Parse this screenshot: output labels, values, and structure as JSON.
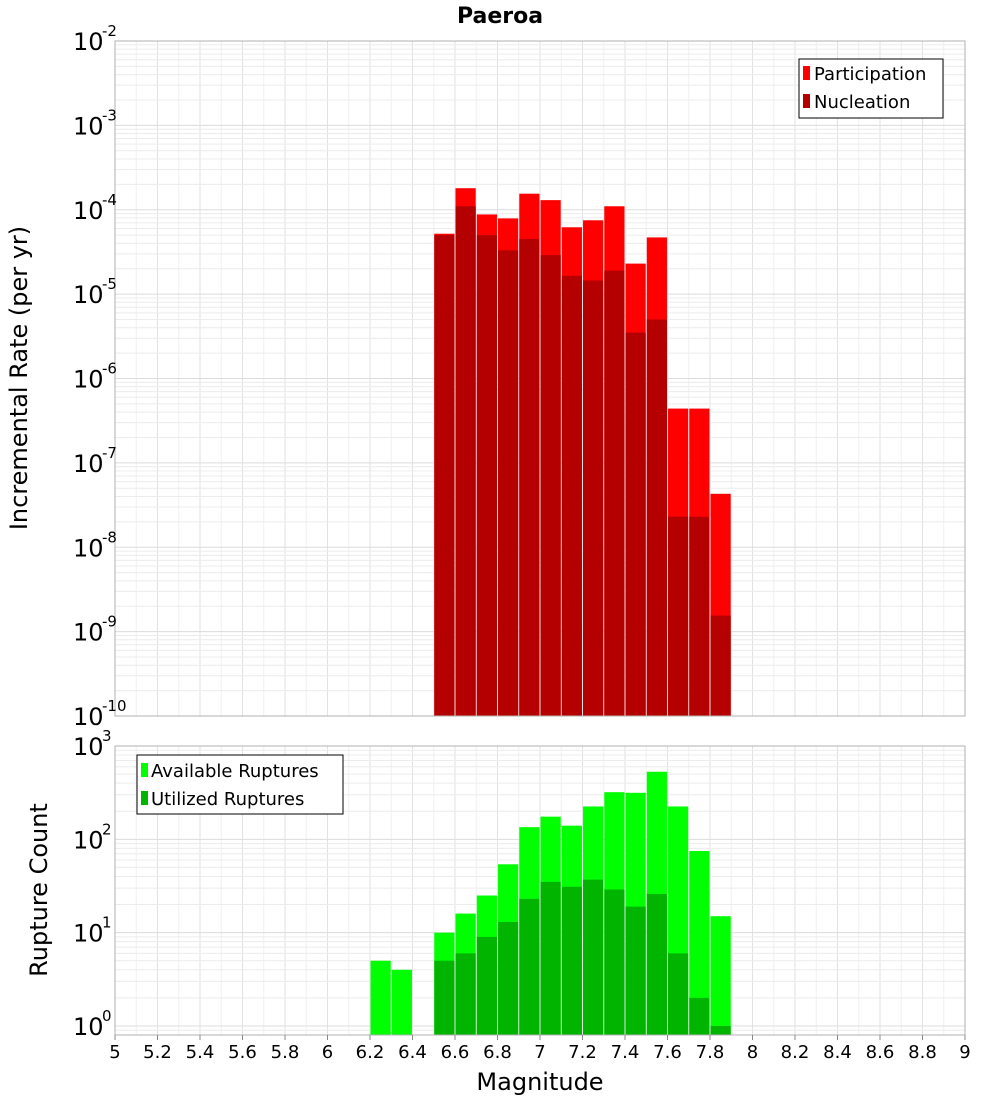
{
  "chart_data": [
    {
      "type": "bar",
      "title": "Paeroa",
      "xlabel": "Magnitude",
      "ylabel": "Incremental Rate (per yr)",
      "yscale": "log",
      "xlim": [
        5,
        9
      ],
      "ylim": [
        1e-10,
        0.01
      ],
      "y_tick_labels": [
        {
          "base": "10",
          "exp": "-10",
          "value": 1e-10
        },
        {
          "base": "10",
          "exp": "-9",
          "value": 1e-09
        },
        {
          "base": "10",
          "exp": "-8",
          "value": 1e-08
        },
        {
          "base": "10",
          "exp": "-7",
          "value": 1e-07
        },
        {
          "base": "10",
          "exp": "-6",
          "value": 1e-06
        },
        {
          "base": "10",
          "exp": "-5",
          "value": 1e-05
        },
        {
          "base": "10",
          "exp": "-4",
          "value": 0.0001
        },
        {
          "base": "10",
          "exp": "-3",
          "value": 0.001
        },
        {
          "base": "10",
          "exp": "-2",
          "value": 0.01
        }
      ],
      "grid": true,
      "legend": {
        "placement": "top-right"
      },
      "x": [
        6.55,
        6.65,
        6.75,
        6.85,
        6.95,
        7.05,
        7.15,
        7.25,
        7.35,
        7.45,
        7.55,
        7.65,
        7.75,
        7.85
      ],
      "series": [
        {
          "name": "Participation",
          "color": "#ff0000",
          "values": [
            5.2e-05,
            0.00018,
            8.8e-05,
            7.9e-05,
            0.000155,
            0.00013,
            6.2e-05,
            7.5e-05,
            0.00011,
            2.3e-05,
            4.7e-05,
            4.4e-07,
            4.4e-07,
            4.3e-08
          ]
        },
        {
          "name": "Nucleation",
          "color": "#b40000",
          "values": [
            5e-05,
            0.00011,
            5e-05,
            3.3e-05,
            4.5e-05,
            2.9e-05,
            1.65e-05,
            1.45e-05,
            1.9e-05,
            3.5e-06,
            5e-06,
            2.3e-08,
            2.3e-08,
            1.55e-09
          ]
        }
      ]
    },
    {
      "type": "bar",
      "xlabel": "Magnitude",
      "ylabel": "Rupture Count",
      "yscale": "log",
      "xlim": [
        5,
        9
      ],
      "ylim": [
        0.8,
        1000
      ],
      "y_tick_labels": [
        {
          "base": "10",
          "exp": "0",
          "value": 1
        },
        {
          "base": "10",
          "exp": "1",
          "value": 10
        },
        {
          "base": "10",
          "exp": "2",
          "value": 100
        },
        {
          "base": "10",
          "exp": "3",
          "value": 1000
        }
      ],
      "x_tick_labels": [
        "5",
        "5.2",
        "5.4",
        "5.6",
        "5.8",
        "6",
        "6.2",
        "6.4",
        "6.6",
        "6.8",
        "7",
        "7.2",
        "7.4",
        "7.6",
        "7.8",
        "8",
        "8.2",
        "8.4",
        "8.6",
        "8.8",
        "9"
      ],
      "grid": true,
      "legend": {
        "placement": "top-left"
      },
      "x": [
        6.25,
        6.35,
        6.55,
        6.65,
        6.75,
        6.85,
        6.95,
        7.05,
        7.15,
        7.25,
        7.35,
        7.45,
        7.55,
        7.65,
        7.75,
        7.85
      ],
      "series": [
        {
          "name": "Available Ruptures",
          "color": "#00ff00",
          "values": [
            5,
            4,
            10,
            16,
            25,
            54,
            135,
            175,
            140,
            225,
            320,
            315,
            530,
            225,
            75,
            15
          ]
        },
        {
          "name": "Utilized Ruptures",
          "color": "#00b400",
          "values": [
            0,
            0,
            5,
            6,
            9,
            13,
            23,
            35,
            31,
            37,
            29,
            19,
            26,
            6,
            2,
            1
          ]
        }
      ]
    }
  ]
}
